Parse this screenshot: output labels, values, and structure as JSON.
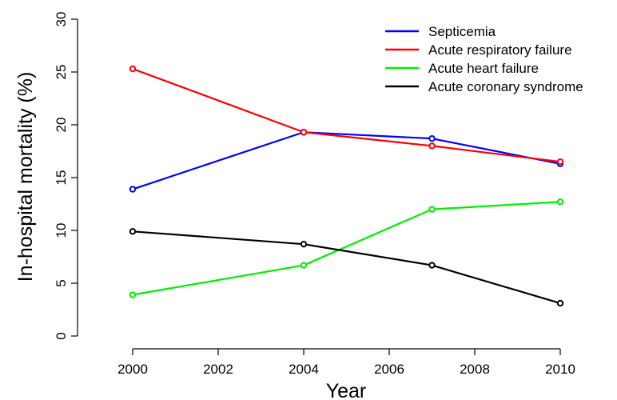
{
  "chart_data": {
    "type": "line",
    "xlabel": "Year",
    "ylabel": "In-hospital mortality (%)",
    "x": [
      2000,
      2004,
      2007,
      2010
    ],
    "xticks": [
      "2000",
      "2002",
      "2004",
      "2006",
      "2008",
      "2010"
    ],
    "yticks": [
      "0",
      "5",
      "10",
      "15",
      "20",
      "25",
      "30"
    ],
    "xlim": [
      2000,
      2010
    ],
    "ylim": [
      0,
      30
    ],
    "grid": false,
    "legend_position": "top-right",
    "series": [
      {
        "name": "Septicemia",
        "color": "#0000ff",
        "values": [
          13.9,
          19.3,
          18.7,
          16.3
        ]
      },
      {
        "name": "Acute respiratory failure",
        "color": "#ff0000",
        "values": [
          25.3,
          19.3,
          18.0,
          16.5
        ]
      },
      {
        "name": "Acute heart failure",
        "color": "#00ee00",
        "values": [
          3.9,
          6.7,
          12.0,
          12.7
        ]
      },
      {
        "name": "Acute coronary syndrome",
        "color": "#000000",
        "values": [
          9.9,
          8.7,
          6.7,
          3.1
        ]
      }
    ]
  }
}
